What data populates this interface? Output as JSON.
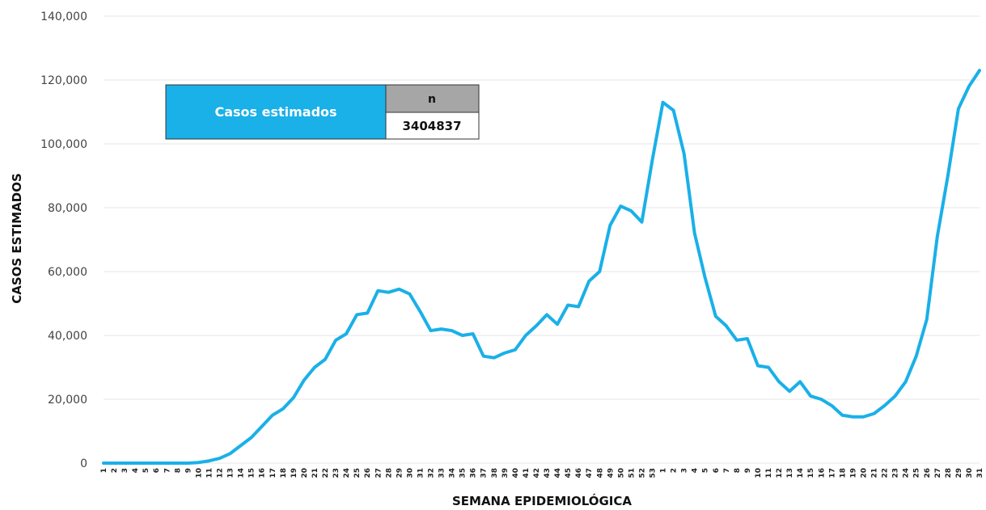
{
  "chart_data": {
    "type": "line",
    "xlabel": "SEMANA EPIDEMIOLÓGICA",
    "ylabel": "CASOS ESTIMADOS",
    "ylim": [
      0,
      140000
    ],
    "yticks": [
      "0",
      "20,000",
      "40,000",
      "60,000",
      "80,000",
      "100,000",
      "120,000",
      "140,000"
    ],
    "grid": true,
    "color": "#1ab0e8",
    "x": [
      "1",
      "2",
      "3",
      "4",
      "5",
      "6",
      "7",
      "8",
      "9",
      "10",
      "11",
      "12",
      "13",
      "14",
      "15",
      "16",
      "17",
      "18",
      "19",
      "20",
      "21",
      "22",
      "23",
      "24",
      "25",
      "26",
      "27",
      "28",
      "29",
      "30",
      "31",
      "32",
      "33",
      "34",
      "35",
      "36",
      "37",
      "38",
      "39",
      "40",
      "41",
      "42",
      "43",
      "44",
      "45",
      "46",
      "47",
      "48",
      "49",
      "50",
      "51",
      "52",
      "53",
      "1",
      "2",
      "3",
      "4",
      "5",
      "6",
      "7",
      "8",
      "9",
      "10",
      "11",
      "12",
      "13",
      "14",
      "15",
      "16",
      "17",
      "18",
      "19",
      "20",
      "21",
      "22",
      "23",
      "24",
      "25",
      "26",
      "27",
      "28",
      "29",
      "30",
      "31"
    ],
    "values": [
      0,
      0,
      0,
      0,
      0,
      0,
      0,
      0,
      0,
      200,
      700,
      1500,
      3000,
      5500,
      8000,
      11500,
      15000,
      17000,
      20500,
      26000,
      30000,
      32500,
      38500,
      40500,
      46500,
      47000,
      54000,
      53500,
      54500,
      53000,
      47500,
      41500,
      42000,
      41500,
      40000,
      40500,
      33500,
      33000,
      34500,
      35500,
      40000,
      43000,
      46500,
      43500,
      49500,
      49000,
      57000,
      60000,
      74500,
      80500,
      79000,
      75500,
      95000,
      113000,
      110500,
      97000,
      72000,
      58000,
      46000,
      43000,
      38500,
      39000,
      30500,
      30000,
      25500,
      22500,
      25500,
      21000,
      20000,
      18000,
      15000,
      14500,
      14500,
      15500,
      18000,
      21000,
      25500,
      33500,
      45000,
      71000,
      90000,
      111000,
      118000,
      123000
    ],
    "legend_box": {
      "label": "Casos estimados",
      "header": "n",
      "value": "3404837"
    }
  }
}
